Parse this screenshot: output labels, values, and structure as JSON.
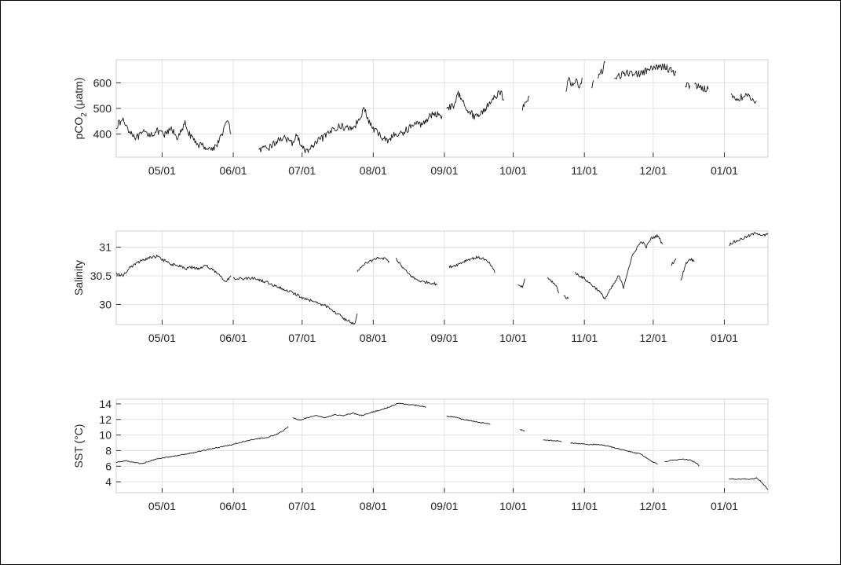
{
  "chart_data": [
    {
      "type": "line",
      "ylabel_main": "pCO",
      "ylabel_sub": "2",
      "ylabel_rest": " (μatm)",
      "xlim": [
        0,
        284
      ],
      "ylim": [
        310,
        690
      ],
      "yticks": [
        400,
        500,
        600
      ],
      "xticks": [
        {
          "x": 20,
          "label": "05/01"
        },
        {
          "x": 51,
          "label": "06/01"
        },
        {
          "x": 81,
          "label": "07/01"
        },
        {
          "x": 112,
          "label": "08/01"
        },
        {
          "x": 143,
          "label": "09/01"
        },
        {
          "x": 173,
          "label": "10/01"
        },
        {
          "x": 204,
          "label": "11/01"
        },
        {
          "x": 234,
          "label": "12/01"
        },
        {
          "x": 265,
          "label": "01/01"
        }
      ],
      "color": "#1a1a1a",
      "noise": 14,
      "segments": [
        [
          [
            0,
            432
          ],
          [
            3,
            455
          ],
          [
            6,
            410
          ],
          [
            9,
            385
          ],
          [
            12,
            405
          ],
          [
            15,
            400
          ],
          [
            18,
            410
          ],
          [
            21,
            395
          ],
          [
            24,
            420
          ],
          [
            27,
            385
          ],
          [
            30,
            440
          ],
          [
            33,
            380
          ],
          [
            36,
            360
          ],
          [
            39,
            350
          ],
          [
            42,
            340
          ],
          [
            45,
            375
          ],
          [
            47,
            425
          ],
          [
            49,
            452
          ],
          [
            50,
            400
          ]
        ],
        [
          [
            62,
            335
          ],
          [
            66,
            345
          ],
          [
            70,
            370
          ],
          [
            73,
            392
          ],
          [
            76,
            360
          ],
          [
            79,
            395
          ],
          [
            81,
            345
          ],
          [
            83,
            332
          ],
          [
            86,
            355
          ],
          [
            89,
            380
          ],
          [
            92,
            395
          ],
          [
            95,
            425
          ],
          [
            98,
            430
          ],
          [
            101,
            422
          ],
          [
            104,
            430
          ],
          [
            106,
            465
          ],
          [
            108,
            500
          ],
          [
            110,
            450
          ],
          [
            112,
            420
          ],
          [
            115,
            395
          ],
          [
            118,
            375
          ],
          [
            121,
            395
          ],
          [
            124,
            400
          ],
          [
            127,
            420
          ],
          [
            130,
            440
          ],
          [
            133,
            438
          ],
          [
            136,
            465
          ],
          [
            139,
            480
          ],
          [
            142,
            470
          ]
        ],
        [
          [
            144,
            505
          ],
          [
            147,
            510
          ],
          [
            149,
            555
          ],
          [
            151,
            540
          ],
          [
            153,
            495
          ],
          [
            156,
            470
          ],
          [
            158,
            475
          ],
          [
            161,
            500
          ],
          [
            163,
            530
          ],
          [
            165,
            540
          ],
          [
            167,
            570
          ],
          [
            169,
            535
          ]
        ],
        [
          [
            177,
            500
          ],
          [
            179,
            525
          ],
          [
            180,
            545
          ]
        ],
        [
          [
            196,
            575
          ],
          [
            197,
            620
          ],
          [
            198,
            595
          ],
          [
            200,
            605
          ],
          [
            202,
            590
          ],
          [
            203,
            620
          ]
        ],
        [
          [
            207,
            575
          ],
          [
            208,
            610
          ]
        ],
        [
          [
            210,
            620
          ],
          [
            212,
            650
          ],
          [
            213,
            680
          ]
        ],
        [
          [
            217,
            625
          ],
          [
            220,
            630
          ],
          [
            224,
            640
          ],
          [
            228,
            635
          ],
          [
            232,
            650
          ],
          [
            236,
            660
          ],
          [
            239,
            665
          ],
          [
            242,
            645
          ],
          [
            244,
            640
          ]
        ],
        [
          [
            248,
            590
          ],
          [
            250,
            590
          ]
        ],
        [
          [
            252,
            590
          ],
          [
            254,
            585
          ],
          [
            256,
            580
          ],
          [
            258,
            575
          ]
        ],
        [
          [
            268,
            545
          ],
          [
            271,
            540
          ],
          [
            274,
            548
          ],
          [
            276,
            542
          ],
          [
            279,
            530
          ]
        ]
      ]
    },
    {
      "type": "line",
      "ylabel_main": "Salinity",
      "xlim": [
        0,
        284
      ],
      "ylim": [
        29.65,
        31.28
      ],
      "yticks": [
        30,
        30.5,
        31
      ],
      "xticks": [
        {
          "x": 20,
          "label": "05/01"
        },
        {
          "x": 51,
          "label": "06/01"
        },
        {
          "x": 81,
          "label": "07/01"
        },
        {
          "x": 112,
          "label": "08/01"
        },
        {
          "x": 143,
          "label": "09/01"
        },
        {
          "x": 173,
          "label": "10/01"
        },
        {
          "x": 204,
          "label": "11/01"
        },
        {
          "x": 234,
          "label": "12/01"
        },
        {
          "x": 265,
          "label": "01/01"
        }
      ],
      "color": "#1a1a1a",
      "noise": 0.025,
      "segments": [
        [
          [
            0,
            30.55
          ],
          [
            3,
            30.5
          ],
          [
            6,
            30.65
          ],
          [
            9,
            30.72
          ],
          [
            12,
            30.78
          ],
          [
            15,
            30.82
          ],
          [
            18,
            30.84
          ],
          [
            21,
            30.76
          ],
          [
            24,
            30.7
          ],
          [
            27,
            30.68
          ],
          [
            30,
            30.62
          ],
          [
            33,
            30.65
          ],
          [
            36,
            30.62
          ],
          [
            39,
            30.68
          ],
          [
            42,
            30.6
          ],
          [
            45,
            30.5
          ],
          [
            48,
            30.4
          ],
          [
            50,
            30.5
          ]
        ],
        [
          [
            51,
            30.45
          ],
          [
            56,
            30.45
          ],
          [
            61,
            30.45
          ],
          [
            66,
            30.38
          ],
          [
            71,
            30.3
          ],
          [
            76,
            30.22
          ],
          [
            81,
            30.12
          ],
          [
            86,
            30.05
          ],
          [
            91,
            29.98
          ],
          [
            96,
            29.85
          ],
          [
            100,
            29.73
          ],
          [
            104,
            29.66
          ]
        ],
        [
          [
            104,
            29.66
          ],
          [
            105,
            29.84
          ]
        ],
        [
          [
            105,
            30.58
          ],
          [
            108,
            30.7
          ],
          [
            111,
            30.76
          ],
          [
            114,
            30.82
          ],
          [
            117,
            30.8
          ],
          [
            119,
            30.75
          ]
        ],
        [
          [
            122,
            30.8
          ],
          [
            124,
            30.68
          ],
          [
            127,
            30.55
          ],
          [
            130,
            30.45
          ],
          [
            133,
            30.4
          ],
          [
            137,
            30.38
          ],
          [
            140,
            30.35
          ]
        ],
        [
          [
            145,
            30.65
          ],
          [
            149,
            30.7
          ],
          [
            153,
            30.78
          ],
          [
            157,
            30.82
          ],
          [
            160,
            30.8
          ],
          [
            163,
            30.7
          ],
          [
            165,
            30.55
          ]
        ],
        [
          [
            175,
            30.35
          ],
          [
            177,
            30.3
          ],
          [
            178,
            30.45
          ]
        ],
        [
          [
            188,
            30.45
          ],
          [
            190,
            30.4
          ],
          [
            192,
            30.3
          ],
          [
            193,
            30.2
          ]
        ],
        [
          [
            195,
            30.15
          ],
          [
            197,
            30.1
          ]
        ],
        [
          [
            200,
            30.55
          ],
          [
            204,
            30.45
          ],
          [
            207,
            30.35
          ],
          [
            210,
            30.25
          ],
          [
            213,
            30.1
          ],
          [
            216,
            30.3
          ],
          [
            219,
            30.5
          ],
          [
            221,
            30.3
          ],
          [
            223,
            30.6
          ],
          [
            225,
            30.85
          ],
          [
            227,
            31.0
          ],
          [
            229,
            31.1
          ],
          [
            231,
            31.0
          ],
          [
            233,
            31.15
          ],
          [
            236,
            31.2
          ],
          [
            238,
            31.05
          ]
        ],
        [
          [
            242,
            30.7
          ],
          [
            244,
            30.8
          ]
        ],
        [
          [
            246,
            30.4
          ],
          [
            248,
            30.7
          ],
          [
            250,
            30.8
          ],
          [
            252,
            30.75
          ]
        ],
        [
          [
            267,
            31.05
          ],
          [
            270,
            31.1
          ],
          [
            273,
            31.15
          ],
          [
            276,
            31.2
          ],
          [
            279,
            31.25
          ],
          [
            282,
            31.2
          ],
          [
            284,
            31.22
          ]
        ]
      ]
    },
    {
      "type": "line",
      "ylabel_main": "SST (°C)",
      "xlim": [
        0,
        284
      ],
      "ylim": [
        2.6,
        14.6
      ],
      "yticks": [
        4,
        6,
        8,
        10,
        12,
        14
      ],
      "xticks": [
        {
          "x": 20,
          "label": "05/01"
        },
        {
          "x": 51,
          "label": "06/01"
        },
        {
          "x": 81,
          "label": "07/01"
        },
        {
          "x": 112,
          "label": "08/01"
        },
        {
          "x": 143,
          "label": "09/01"
        },
        {
          "x": 173,
          "label": "10/01"
        },
        {
          "x": 204,
          "label": "11/01"
        },
        {
          "x": 234,
          "label": "12/01"
        },
        {
          "x": 265,
          "label": "01/01"
        }
      ],
      "color": "#1a1a1a",
      "noise": 0.06,
      "segments": [
        [
          [
            0,
            6.5
          ],
          [
            4,
            6.7
          ],
          [
            8,
            6.5
          ],
          [
            11,
            6.3
          ],
          [
            16,
            6.8
          ],
          [
            21,
            7.1
          ],
          [
            26,
            7.3
          ],
          [
            31,
            7.6
          ],
          [
            36,
            7.9
          ],
          [
            41,
            8.2
          ],
          [
            46,
            8.5
          ],
          [
            51,
            8.8
          ],
          [
            56,
            9.2
          ],
          [
            61,
            9.5
          ],
          [
            66,
            9.7
          ],
          [
            70,
            10.1
          ],
          [
            73,
            10.6
          ],
          [
            75,
            11.1
          ]
        ],
        [
          [
            77,
            12.2
          ],
          [
            80,
            11.9
          ],
          [
            83,
            12.2
          ],
          [
            87,
            12.5
          ],
          [
            91,
            12.2
          ],
          [
            95,
            12.6
          ],
          [
            99,
            12.5
          ],
          [
            103,
            12.8
          ],
          [
            107,
            12.5
          ],
          [
            111,
            12.9
          ],
          [
            115,
            13.2
          ],
          [
            119,
            13.6
          ],
          [
            123,
            14.1
          ],
          [
            127,
            13.9
          ],
          [
            131,
            13.8
          ],
          [
            135,
            13.6
          ]
        ],
        [
          [
            144,
            12.4
          ],
          [
            148,
            12.3
          ],
          [
            151,
            12.0
          ],
          [
            155,
            11.8
          ],
          [
            159,
            11.6
          ],
          [
            163,
            11.4
          ]
        ],
        [
          [
            176,
            10.7
          ],
          [
            178,
            10.5
          ]
        ],
        [
          [
            186,
            9.4
          ],
          [
            190,
            9.3
          ],
          [
            194,
            9.2
          ]
        ],
        [
          [
            198,
            9.0
          ],
          [
            202,
            8.9
          ],
          [
            206,
            8.8
          ],
          [
            210,
            8.8
          ],
          [
            214,
            8.6
          ],
          [
            218,
            8.3
          ],
          [
            222,
            8.0
          ],
          [
            225,
            7.8
          ],
          [
            228,
            7.6
          ],
          [
            230,
            7.3
          ],
          [
            232,
            6.9
          ],
          [
            234,
            6.5
          ],
          [
            236,
            6.3
          ]
        ],
        [
          [
            239,
            6.6
          ],
          [
            243,
            6.8
          ],
          [
            247,
            6.9
          ],
          [
            250,
            6.8
          ],
          [
            253,
            6.4
          ],
          [
            254,
            6.0
          ]
        ],
        [
          [
            267,
            4.4
          ],
          [
            270,
            4.3
          ],
          [
            273,
            4.4
          ],
          [
            276,
            4.3
          ],
          [
            279,
            4.5
          ],
          [
            281,
            4.0
          ],
          [
            284,
            3.0
          ]
        ]
      ]
    }
  ]
}
